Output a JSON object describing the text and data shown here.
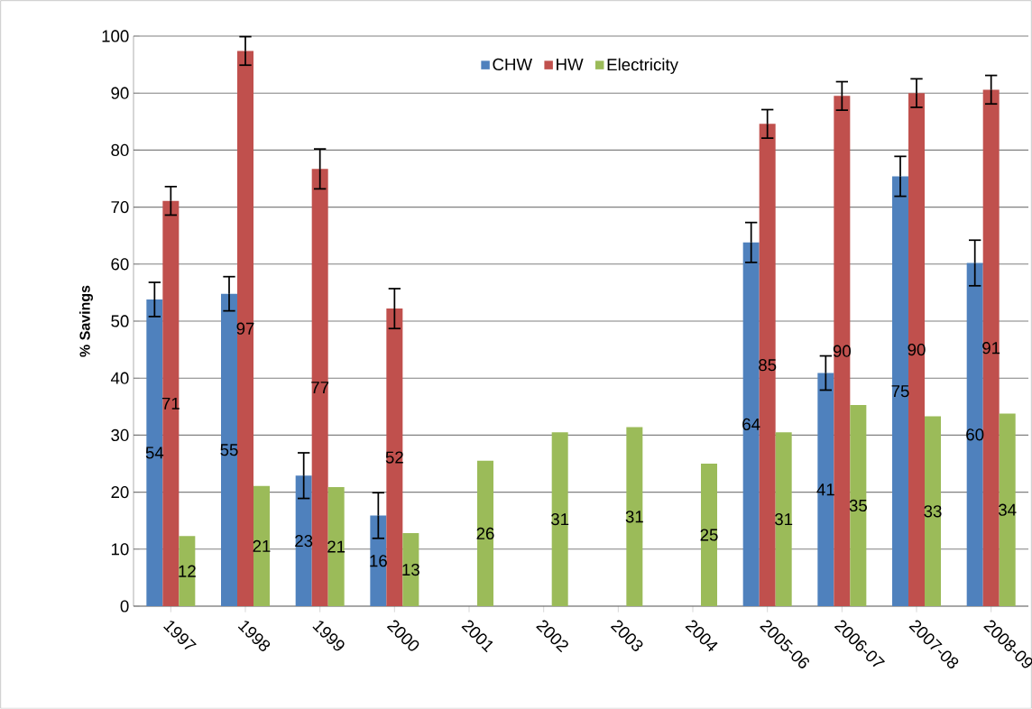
{
  "chart_data": {
    "type": "bar",
    "ylabel": "% Savings",
    "categories": [
      "1997",
      "1998",
      "1999",
      "2000",
      "2001",
      "2002",
      "2003",
      "2004",
      "2005-06",
      "2006-07",
      "2007-08",
      "2008-09"
    ],
    "series": [
      {
        "name": "CHW",
        "color": "#4f81bd",
        "values": [
          53.8,
          54.8,
          22.9,
          15.9,
          null,
          null,
          null,
          null,
          63.8,
          40.9,
          75.4,
          60.2
        ],
        "errors": [
          3,
          3,
          4,
          4,
          null,
          null,
          null,
          null,
          3.5,
          3,
          3.5,
          4
        ],
        "value_labels": [
          "54",
          "55",
          "23",
          "16",
          null,
          null,
          null,
          null,
          "64",
          "41",
          "75",
          "60"
        ]
      },
      {
        "name": "HW",
        "color": "#c0504d",
        "values": [
          71.1,
          97.4,
          76.7,
          52.2,
          null,
          null,
          null,
          null,
          84.6,
          89.5,
          90.0,
          90.6
        ],
        "errors": [
          2.5,
          2.5,
          3.5,
          3.5,
          null,
          null,
          null,
          null,
          2.5,
          2.5,
          2.5,
          2.5
        ],
        "value_labels": [
          "71",
          "97",
          "77",
          "52",
          null,
          null,
          null,
          null,
          "85",
          "90",
          "90",
          "91"
        ]
      },
      {
        "name": "Electricity",
        "color": "#9bbb59",
        "values": [
          12.3,
          21.1,
          20.9,
          12.8,
          25.5,
          30.5,
          31.4,
          25.0,
          30.5,
          35.3,
          33.3,
          33.8
        ],
        "value_labels": [
          "12",
          "21",
          "21",
          "13",
          "26",
          "31",
          "31",
          "25",
          "31",
          "35",
          "33",
          "34"
        ]
      }
    ],
    "ylim": [
      0,
      100
    ],
    "yticks": [
      0,
      10,
      20,
      30,
      40,
      50,
      60,
      70,
      80,
      90,
      100
    ],
    "grid": "y",
    "legend": "top"
  }
}
